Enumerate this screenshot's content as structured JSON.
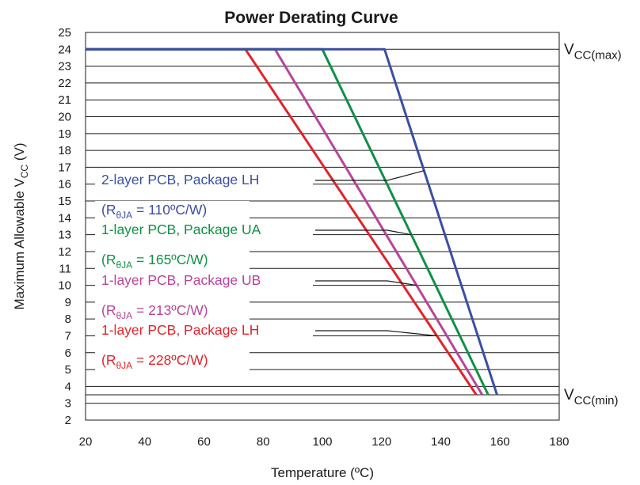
{
  "chart_data": {
    "type": "line",
    "title": "Power Derating Curve",
    "xlabel": "Temperature (ºC)",
    "ylabel": {
      "main": "Maximum Allowable V",
      "sub": "CC",
      "suffix": " (V)"
    },
    "xlim": [
      20,
      180
    ],
    "ylim": [
      2,
      25
    ],
    "x_ticks": [
      "20",
      "40",
      "60",
      "80",
      "100",
      "120",
      "140",
      "160",
      "180"
    ],
    "y_ticks": [
      "2",
      "3",
      "4",
      "5",
      "6",
      "7",
      "8",
      "9",
      "10",
      "11",
      "12",
      "13",
      "14",
      "15",
      "16",
      "17",
      "18",
      "19",
      "20",
      "21",
      "22",
      "23",
      "24",
      "25"
    ],
    "grid": "horizontal",
    "series": [
      {
        "label_line1": "1-layer PCB, Package LH",
        "label_line2": {
          "pre": "(R",
          "sub": "θJA",
          "post": " = 228ºC/W)"
        },
        "color": "#e0242b",
        "points": [
          [
            20,
            24
          ],
          [
            74,
            24
          ],
          [
            152,
            3.5
          ]
        ],
        "pointer_at": 7
      },
      {
        "label_line1": "1-layer PCB, Package UB",
        "label_line2": {
          "pre": "(R",
          "sub": "θJA",
          "post": " = 213ºC/W)"
        },
        "color": "#b8449a",
        "points": [
          [
            20,
            24
          ],
          [
            84,
            24
          ],
          [
            154,
            3.5
          ]
        ],
        "pointer_at": 10
      },
      {
        "label_line1": "1-layer PCB, Package UA",
        "label_line2": {
          "pre": "(R",
          "sub": "θJA",
          "post": " = 165ºC/W)"
        },
        "color": "#0f9146",
        "points": [
          [
            20,
            24
          ],
          [
            100,
            24
          ],
          [
            156,
            3.5
          ]
        ],
        "pointer_at": 13
      },
      {
        "label_line1": "2-layer PCB, Package LH",
        "label_line2": {
          "pre": "(R",
          "sub": "θJA",
          "post": " = 110ºC/W)"
        },
        "color": "#3b4fa0",
        "points": [
          [
            20,
            24
          ],
          [
            121,
            24
          ],
          [
            159,
            3.5
          ]
        ],
        "pointer_at": 16.8
      }
    ],
    "reference_lines": [
      {
        "y": 24,
        "label": {
          "main": "V",
          "sub": "CC(max)"
        }
      },
      {
        "y": 3.5,
        "label": {
          "main": "V",
          "sub": "CC(min)"
        }
      }
    ]
  }
}
